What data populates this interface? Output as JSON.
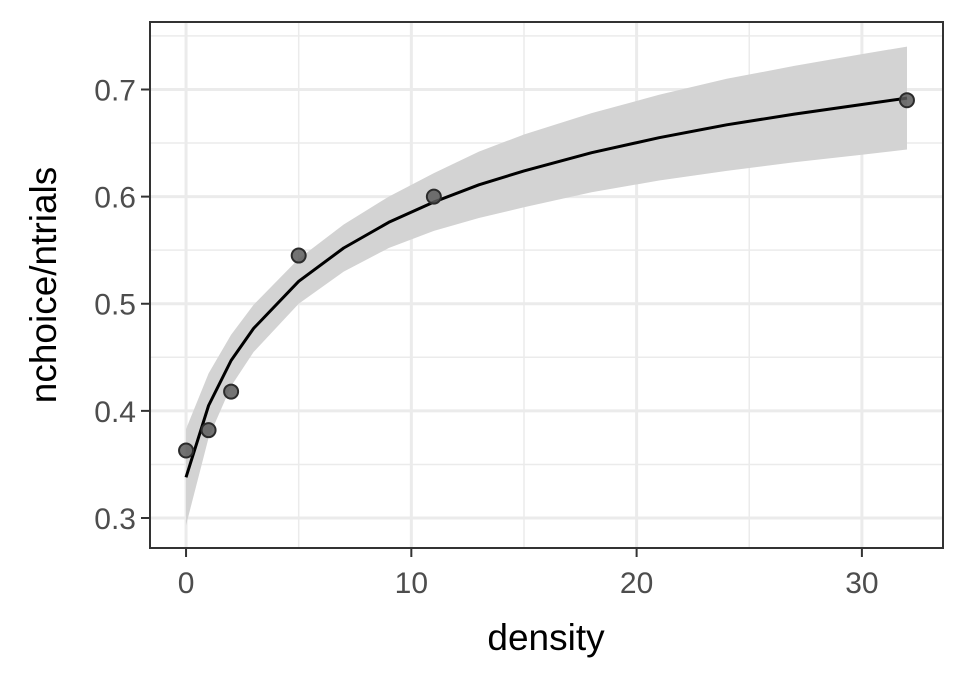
{
  "chart_data": {
    "type": "scatter",
    "xlabel": "density",
    "ylabel": "nchoice/ntrials",
    "xlim": [
      -1.6,
      33.6
    ],
    "ylim": [
      0.272,
      0.763
    ],
    "x_ticks": [
      0,
      10,
      20,
      30
    ],
    "x_tick_labels": [
      "0",
      "10",
      "20",
      "30"
    ],
    "y_ticks": [
      0.3,
      0.4,
      0.5,
      0.6,
      0.7
    ],
    "y_tick_labels": [
      "0.3",
      "0.4",
      "0.5",
      "0.6",
      "0.7"
    ],
    "grid": true,
    "points": [
      {
        "x": 0,
        "y": 0.363
      },
      {
        "x": 1,
        "y": 0.382
      },
      {
        "x": 2,
        "y": 0.418
      },
      {
        "x": 5,
        "y": 0.545
      },
      {
        "x": 11,
        "y": 0.6
      },
      {
        "x": 32,
        "y": 0.69
      }
    ],
    "fit_line": {
      "x": [
        0,
        1,
        2,
        3,
        5,
        7,
        9,
        11,
        13,
        15,
        18,
        21,
        24,
        27,
        30,
        32
      ],
      "y": [
        0.338,
        0.405,
        0.447,
        0.477,
        0.521,
        0.552,
        0.576,
        0.595,
        0.611,
        0.624,
        0.641,
        0.655,
        0.667,
        0.677,
        0.686,
        0.692
      ]
    },
    "confidence_band": {
      "x": [
        0,
        1,
        2,
        3,
        5,
        7,
        9,
        11,
        13,
        15,
        18,
        21,
        24,
        27,
        30,
        32
      ],
      "lower": [
        0.293,
        0.375,
        0.423,
        0.455,
        0.5,
        0.53,
        0.552,
        0.568,
        0.58,
        0.59,
        0.604,
        0.615,
        0.624,
        0.632,
        0.639,
        0.644
      ],
      "upper": [
        0.383,
        0.435,
        0.471,
        0.499,
        0.542,
        0.574,
        0.6,
        0.622,
        0.642,
        0.658,
        0.678,
        0.695,
        0.71,
        0.722,
        0.733,
        0.74
      ]
    },
    "colors": {
      "point_fill": "#5a5a5a",
      "point_stroke": "#2b2b2b",
      "line": "#000000",
      "band": "#d3d3d3",
      "grid": "#ebebeb",
      "panel_border": "#333333"
    }
  }
}
